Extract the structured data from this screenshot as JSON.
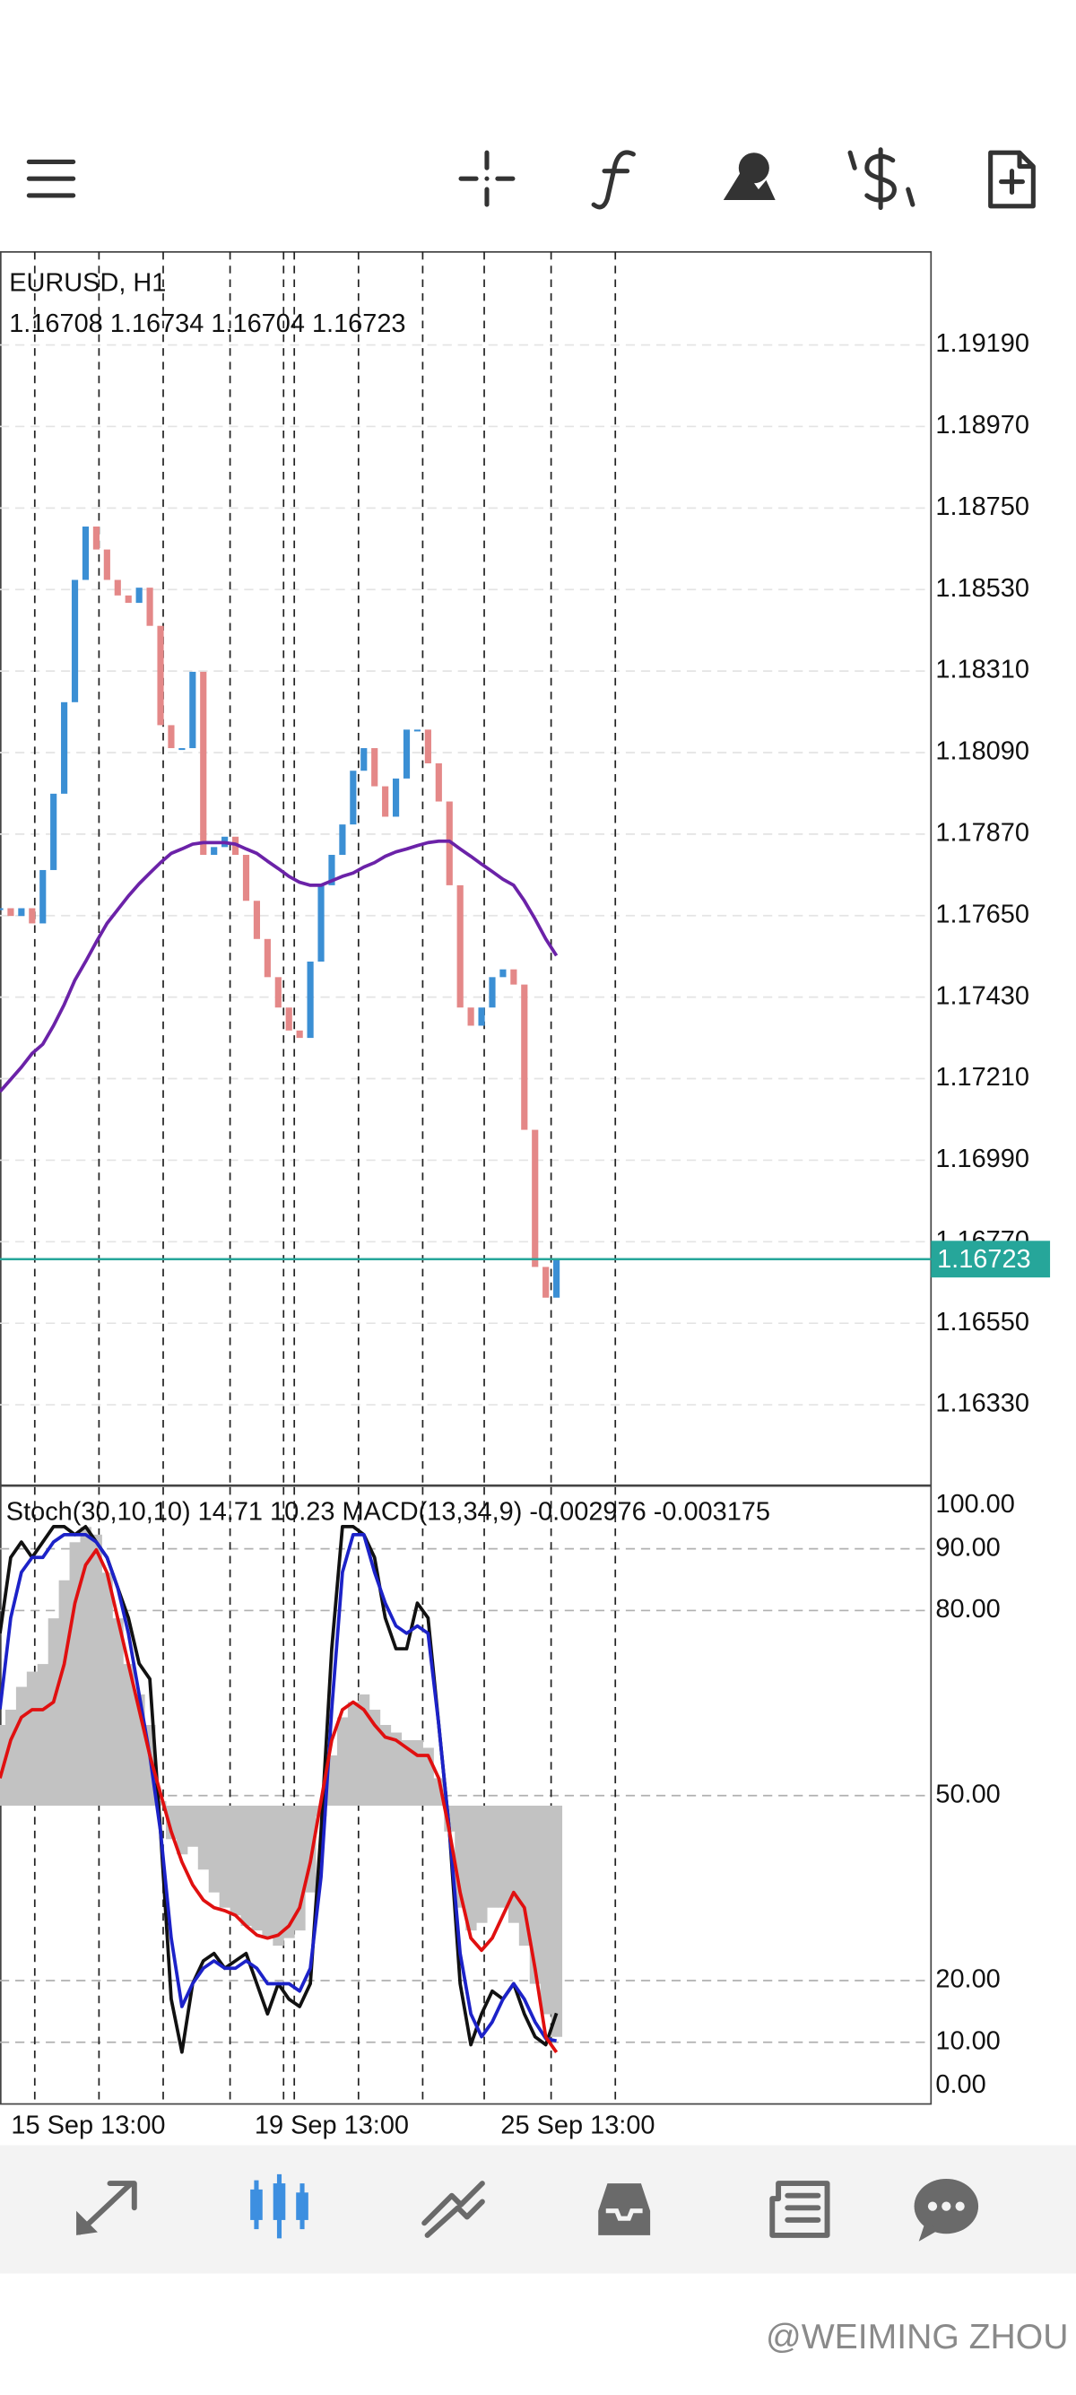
{
  "chart_data": [
    {
      "type": "candlestick",
      "title": "EURUSD, H1",
      "subtitle": "1.16708 1.16734 1.16704 1.16723",
      "x": [
        0,
        4,
        8,
        12,
        16,
        20,
        24,
        28,
        32,
        36,
        40,
        44,
        48,
        52,
        56,
        60,
        64,
        68,
        72,
        76,
        80,
        84,
        88,
        92,
        96,
        100,
        104,
        108,
        112,
        116,
        120,
        124,
        128,
        132,
        136,
        140,
        144,
        148,
        152,
        156,
        160,
        164,
        168,
        172,
        176,
        180,
        184,
        188,
        192,
        196,
        200,
        204,
        208
      ],
      "xlim": [
        0,
        348
      ],
      "separators": [
        13,
        37,
        61,
        86,
        106,
        110,
        134,
        158,
        181,
        206,
        230
      ],
      "ylim": [
        1.16116,
        1.19441
      ],
      "yticks": [
        {
          "value": 1.1919,
          "label": "1.19190"
        },
        {
          "value": 1.1897,
          "label": "1.18970"
        },
        {
          "value": 1.1875,
          "label": "1.18750"
        },
        {
          "value": 1.1853,
          "label": "1.18530"
        },
        {
          "value": 1.1831,
          "label": "1.18310"
        },
        {
          "value": 1.1809,
          "label": "1.18090"
        },
        {
          "value": 1.1787,
          "label": "1.17870"
        },
        {
          "value": 1.1765,
          "label": "1.17650"
        },
        {
          "value": 1.1743,
          "label": "1.17430"
        },
        {
          "value": 1.1721,
          "label": "1.17210"
        },
        {
          "value": 1.1699,
          "label": "1.16990"
        },
        {
          "value": 1.1677,
          "label": "1.16770"
        },
        {
          "value": 1.1655,
          "label": "1.16550"
        },
        {
          "value": 1.1633,
          "label": "1.16330"
        }
      ],
      "grid": true,
      "current_price": {
        "value": 1.16723,
        "label": "1.16723",
        "color": "#26a69a"
      },
      "series": [
        {
          "up_color": "#3b8fd4",
          "down_color": "#e48888",
          "values": [
            1.1767,
            1.17649,
            1.1767,
            1.17629,
            1.17773,
            1.17979,
            1.18226,
            1.18556,
            1.187,
            1.18638,
            1.18556,
            1.18514,
            1.18494,
            1.18535,
            1.18432,
            1.18164,
            1.18102,
            1.18102,
            1.18308,
            1.17814,
            1.17835,
            1.17863,
            1.17814,
            1.1769,
            1.17587,
            1.17484,
            1.17402,
            1.1734,
            1.1732,
            1.17526,
            1.17732,
            1.17814,
            1.17896,
            1.18041,
            1.18102,
            1.17999,
            1.17917,
            1.1802,
            1.18152,
            1.18152,
            1.18061,
            1.17958,
            1.17732,
            1.17402,
            1.17353,
            1.17402,
            1.17484,
            1.17505,
            1.17464,
            1.17072,
            1.16702,
            1.16619,
            1.16723
          ]
        },
        {
          "color": "#6b22a8",
          "values": [
            1.17175,
            1.17208,
            1.17241,
            1.17278,
            1.17303,
            1.17353,
            1.1741,
            1.17476,
            1.17526,
            1.17579,
            1.17629,
            1.17666,
            1.17703,
            1.17736,
            1.17765,
            1.17793,
            1.17818,
            1.1783,
            1.17843,
            1.17847,
            1.17847,
            1.17847,
            1.17843,
            1.1783,
            1.17818,
            1.17797,
            1.17777,
            1.17756,
            1.1774,
            1.17732,
            1.17732,
            1.17744,
            1.17756,
            1.17765,
            1.17781,
            1.17793,
            1.1781,
            1.17822,
            1.1783,
            1.17839,
            1.17847,
            1.17851,
            1.17851,
            1.1783,
            1.1781,
            1.17789,
            1.17769,
            1.17748,
            1.17732,
            1.1769,
            1.17641,
            1.17587,
            1.17542
          ]
        }
      ]
    },
    {
      "type": "oscillator",
      "title": "Stoch(30,10,10) 14.71 10.23 MACD(13,34,9) -0.002976 -0.003175",
      "x": [
        0,
        4,
        8,
        12,
        16,
        20,
        24,
        28,
        32,
        36,
        40,
        44,
        48,
        52,
        56,
        60,
        64,
        68,
        72,
        76,
        80,
        84,
        88,
        92,
        96,
        100,
        104,
        108,
        112,
        116,
        120,
        124,
        128,
        132,
        136,
        140,
        144,
        148,
        152,
        156,
        160,
        164,
        168,
        172,
        176,
        180,
        184,
        188,
        192,
        196,
        200,
        204,
        208
      ],
      "xlim": [
        0,
        348
      ],
      "xticks": [
        {
          "value": 33,
          "label": "15 Sep 13:00"
        },
        {
          "value": 124,
          "label": "19 Sep 13:00"
        },
        {
          "value": 216,
          "label": "25 Sep 13:00"
        }
      ],
      "separators": [
        13,
        37,
        61,
        86,
        106,
        110,
        134,
        158,
        181,
        206,
        230
      ],
      "ylim": [
        0,
        100
      ],
      "yticks": [
        {
          "value": 100,
          "label": "100.00"
        },
        {
          "value": 90,
          "label": "90.00"
        },
        {
          "value": 80,
          "label": "80.00"
        },
        {
          "value": 50,
          "label": "50.00"
        },
        {
          "value": 20,
          "label": "20.00"
        },
        {
          "value": 10,
          "label": "10.00"
        },
        {
          "value": 0,
          "label": "0.00"
        }
      ],
      "y2lim": [
        -0.00384,
        0.0041
      ],
      "grid": true,
      "series": [
        {
          "type": "bar",
          "axis": "y2",
          "color": "#c2c2c2",
          "values": [
            0.001039,
            0.001235,
            0.001529,
            0.001725,
            0.001823,
            0.002411,
            0.002901,
            0.003391,
            0.003587,
            0.003489,
            0.002999,
            0.002411,
            0.001823,
            0.001431,
            0.001039,
            5.9e-05,
            -0.000431,
            -0.000627,
            -0.000529,
            -0.000823,
            -0.001117,
            -0.001313,
            -0.001411,
            -0.001548,
            -0.001607,
            -0.001705,
            -0.001803,
            -0.001705,
            -0.001607,
            -0.001117,
            -0.000137,
            0.000647,
            0.001137,
            0.001333,
            0.001431,
            0.001235,
            0.001039,
            0.000941,
            0.000843,
            0.000843,
            0.000745,
            0.000353,
            -0.000333,
            -0.001313,
            -0.001607,
            -0.001509,
            -0.001313,
            -0.001313,
            -0.001509,
            -0.001803,
            -0.002293,
            -0.002685,
            -0.002976
          ]
        },
        {
          "color": "#111111",
          "values": [
            76.3,
            88.6,
            91.1,
            88.6,
            91.1,
            93.6,
            93.6,
            92.3,
            93.6,
            91.1,
            88.6,
            83.7,
            78.8,
            71.4,
            68.9,
            44.2,
            17,
            8.4,
            19.5,
            23.2,
            24.4,
            22,
            23.2,
            24.4,
            19.5,
            14.6,
            19.5,
            17,
            15.8,
            19.5,
            44.2,
            73.8,
            93.6,
            93.6,
            92.3,
            88.6,
            78.8,
            73.8,
            73.8,
            81.2,
            78.8,
            61.5,
            44.2,
            19.5,
            9.6,
            14.6,
            18.3,
            17,
            19.5,
            14.6,
            10.9,
            9.6,
            14.71
          ]
        },
        {
          "color": "#1c22c8",
          "values": [
            64,
            78.8,
            86.2,
            88.6,
            88.6,
            91.1,
            92.3,
            92.3,
            92.3,
            91.1,
            88.6,
            83.7,
            76.3,
            66.4,
            56.5,
            44.2,
            26.9,
            15.8,
            19.5,
            22,
            23.2,
            22,
            22,
            23.2,
            22,
            19.5,
            19.5,
            19.5,
            18.3,
            22,
            36.8,
            64,
            86.2,
            92.3,
            92.3,
            86.2,
            81.2,
            77.5,
            76.3,
            77.5,
            76.3,
            61.5,
            44.2,
            24.4,
            14.6,
            10.9,
            13.3,
            17,
            19.5,
            17,
            13.3,
            10.6,
            10.23
          ]
        },
        {
          "axis": "y2",
          "color": "#e01010",
          "values": [
            0.000353,
            0.000843,
            0.001137,
            0.001235,
            0.001235,
            0.001333,
            0.001823,
            0.002607,
            0.003097,
            0.003293,
            0.002999,
            0.002411,
            0.001823,
            0.001235,
            0.000647,
            0.000157,
            -0.000333,
            -0.000725,
            -0.001019,
            -0.001215,
            -0.001313,
            -0.001352,
            -0.001411,
            -0.001548,
            -0.001666,
            -0.001705,
            -0.001666,
            -0.001548,
            -0.001313,
            -0.000725,
            5.9e-05,
            0.000843,
            0.001235,
            0.001333,
            0.001235,
            0.001039,
            0.000882,
            0.000843,
            0.000745,
            0.000647,
            0.000647,
            0.000353,
            -0.000333,
            -0.001117,
            -0.001705,
            -0.001862,
            -0.001705,
            -0.001411,
            -0.001117,
            -0.001313,
            -0.002097,
            -0.002979,
            -0.003175
          ]
        }
      ]
    }
  ],
  "watermark": "@WEIMING ZHOU"
}
